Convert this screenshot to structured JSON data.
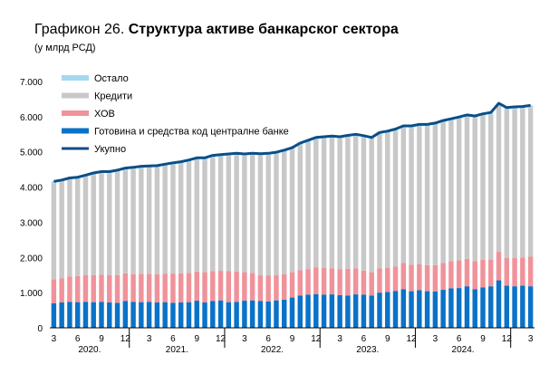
{
  "title": {
    "prefix": "Графикон 26.",
    "main": "Структура активе банкарског сектора"
  },
  "subtitle": "(у млрд РСД)",
  "colors": {
    "ostalo": "#a5d8ef",
    "krediti": "#c8c8c8",
    "hov": "#f0929a",
    "gotovina": "#0a72c8",
    "ukupno": "#0d4e86"
  },
  "chart_data": {
    "type": "bar",
    "stacked": true,
    "ylim": [
      0,
      7000
    ],
    "yticks": [
      0,
      1000,
      2000,
      3000,
      4000,
      5000,
      6000,
      7000
    ],
    "ytick_labels": [
      "0",
      "1.000",
      "2.000",
      "3.000",
      "4.000",
      "5.000",
      "6.000",
      "7.000"
    ],
    "legend_position": "top-left",
    "categories": [
      "3",
      "4",
      "5",
      "6",
      "7",
      "8",
      "9",
      "10",
      "11",
      "12",
      "1",
      "2",
      "3",
      "4",
      "5",
      "6",
      "7",
      "8",
      "9",
      "10",
      "11",
      "12",
      "1",
      "2",
      "3",
      "4",
      "5",
      "6",
      "7",
      "8",
      "9",
      "10",
      "11",
      "12",
      "1",
      "2",
      "3",
      "4",
      "5",
      "6",
      "7",
      "8",
      "9",
      "10",
      "11",
      "12",
      "1",
      "2",
      "3",
      "4",
      "5",
      "6",
      "7",
      "8",
      "9",
      "10",
      "11",
      "12",
      "1",
      "2",
      "3"
    ],
    "x_tick_labels": [
      "3",
      "6",
      "9",
      "12",
      "3",
      "6",
      "9",
      "12",
      "3",
      "6",
      "9",
      "12",
      "3",
      "6",
      "9",
      "12",
      "3",
      "6",
      "9",
      "12",
      "3"
    ],
    "years": [
      {
        "label": "2020.",
        "start": 0,
        "end": 9
      },
      {
        "label": "2021.",
        "start": 10,
        "end": 21
      },
      {
        "label": "2022.",
        "start": 22,
        "end": 33
      },
      {
        "label": "2023.",
        "start": 34,
        "end": 45
      },
      {
        "label": "2024.",
        "start": 46,
        "end": 57
      }
    ],
    "series": [
      {
        "key": "gotovina",
        "name": "Готовина и средства код централне банке",
        "values": [
          700,
          720,
          740,
          730,
          740,
          730,
          740,
          720,
          710,
          760,
          740,
          730,
          740,
          720,
          730,
          710,
          720,
          730,
          770,
          720,
          760,
          780,
          730,
          740,
          770,
          780,
          760,
          750,
          780,
          800,
          860,
          920,
          940,
          960,
          940,
          950,
          930,
          920,
          950,
          940,
          920,
          1000,
          1020,
          1050,
          1100,
          1040,
          1070,
          1040,
          1030,
          1080,
          1120,
          1130,
          1180,
          1100,
          1150,
          1180,
          1350,
          1200,
          1180,
          1200,
          1180
        ]
      },
      {
        "key": "hov",
        "name": "ХОВ",
        "values": [
          680,
          690,
          720,
          740,
          760,
          770,
          770,
          780,
          790,
          790,
          780,
          800,
          790,
          800,
          810,
          830,
          830,
          830,
          830,
          860,
          850,
          840,
          880,
          860,
          810,
          780,
          740,
          740,
          720,
          720,
          720,
          720,
          730,
          760,
          760,
          740,
          730,
          760,
          740,
          690,
          660,
          690,
          680,
          690,
          740,
          750,
          740,
          740,
          750,
          760,
          770,
          790,
          780,
          790,
          780,
          760,
          810,
          790,
          800,
          800,
          840
        ]
      },
      {
        "key": "krediti",
        "name": "Кредити",
        "values": [
          2720,
          2730,
          2740,
          2750,
          2780,
          2830,
          2860,
          2870,
          2910,
          2920,
          2970,
          2990,
          3000,
          3020,
          3040,
          3080,
          3100,
          3140,
          3160,
          3180,
          3220,
          3230,
          3260,
          3290,
          3290,
          3330,
          3380,
          3400,
          3420,
          3460,
          3470,
          3540,
          3590,
          3620,
          3660,
          3690,
          3700,
          3720,
          3740,
          3760,
          3760,
          3790,
          3820,
          3840,
          3830,
          3880,
          3900,
          3930,
          3970,
          3980,
          3980,
          4000,
          4020,
          4060,
          4080,
          4110,
          4150,
          4200,
          4230,
          4220,
          4230
        ]
      },
      {
        "key": "ostalo",
        "name": "Остало",
        "values": [
          60,
          60,
          60,
          60,
          60,
          70,
          70,
          70,
          70,
          70,
          70,
          70,
          70,
          70,
          70,
          70,
          70,
          70,
          70,
          70,
          70,
          70,
          70,
          70,
          70,
          70,
          70,
          70,
          70,
          70,
          70,
          70,
          70,
          70,
          70,
          70,
          70,
          70,
          70,
          70,
          70,
          70,
          70,
          70,
          70,
          70,
          70,
          70,
          70,
          70,
          70,
          70,
          70,
          70,
          70,
          70,
          70,
          70,
          70,
          70,
          70
        ]
      }
    ],
    "line": {
      "key": "ukupno",
      "name": "Укупно",
      "values": [
        4160,
        4200,
        4260,
        4280,
        4340,
        4400,
        4440,
        4440,
        4480,
        4540,
        4560,
        4590,
        4600,
        4610,
        4650,
        4690,
        4720,
        4770,
        4830,
        4830,
        4900,
        4920,
        4940,
        4960,
        4940,
        4960,
        4950,
        4960,
        4990,
        5050,
        5120,
        5250,
        5330,
        5410,
        5430,
        5450,
        5430,
        5470,
        5500,
        5460,
        5410,
        5550,
        5590,
        5650,
        5740,
        5740,
        5780,
        5780,
        5820,
        5890,
        5940,
        5990,
        6050,
        6020,
        6080,
        6120,
        6380,
        6260,
        6280,
        6290,
        6320
      ]
    }
  }
}
